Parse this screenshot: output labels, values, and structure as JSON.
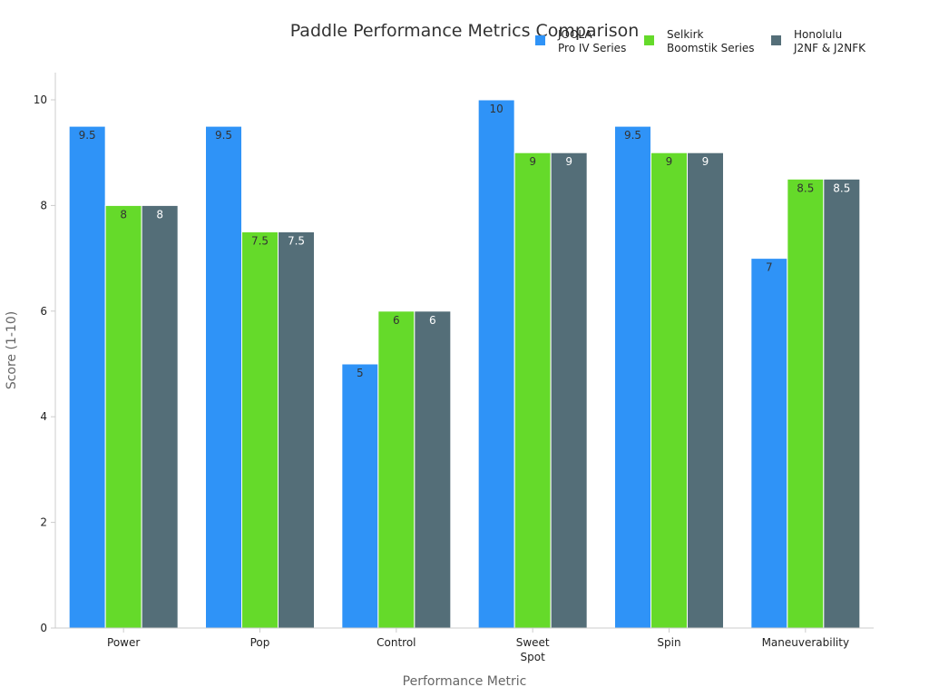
{
  "chart_data": {
    "type": "bar",
    "title": "Paddle Performance Metrics Comparison",
    "xlabel": "Performance Metric",
    "ylabel": "Score (1-10)",
    "ylim": [
      0,
      10.5
    ],
    "yticks": [
      0,
      2,
      4,
      6,
      8,
      10
    ],
    "grid": false,
    "legend_position": "top-right",
    "categories": [
      [
        "Power"
      ],
      [
        "Pop"
      ],
      [
        "Control"
      ],
      [
        "Sweet",
        "Spot"
      ],
      [
        "Spin"
      ],
      [
        "Maneuverability"
      ]
    ],
    "series": [
      {
        "name": [
          "JOOLA",
          "Pro IV Series"
        ],
        "color": "#2F93F7",
        "label_color": "#333333",
        "values": [
          9.5,
          9.5,
          5,
          10,
          9.5,
          7
        ]
      },
      {
        "name": [
          "Selkirk",
          "Boomstik Series"
        ],
        "color": "#65DA2A",
        "label_color": "#333333",
        "values": [
          8,
          7.5,
          6,
          9,
          9,
          8.5
        ]
      },
      {
        "name": [
          "Honolulu",
          "J2NF & J2NFK"
        ],
        "color": "#546E78",
        "label_color": "#ffffff",
        "values": [
          8,
          7.5,
          6,
          9,
          9,
          8.5
        ]
      }
    ]
  }
}
